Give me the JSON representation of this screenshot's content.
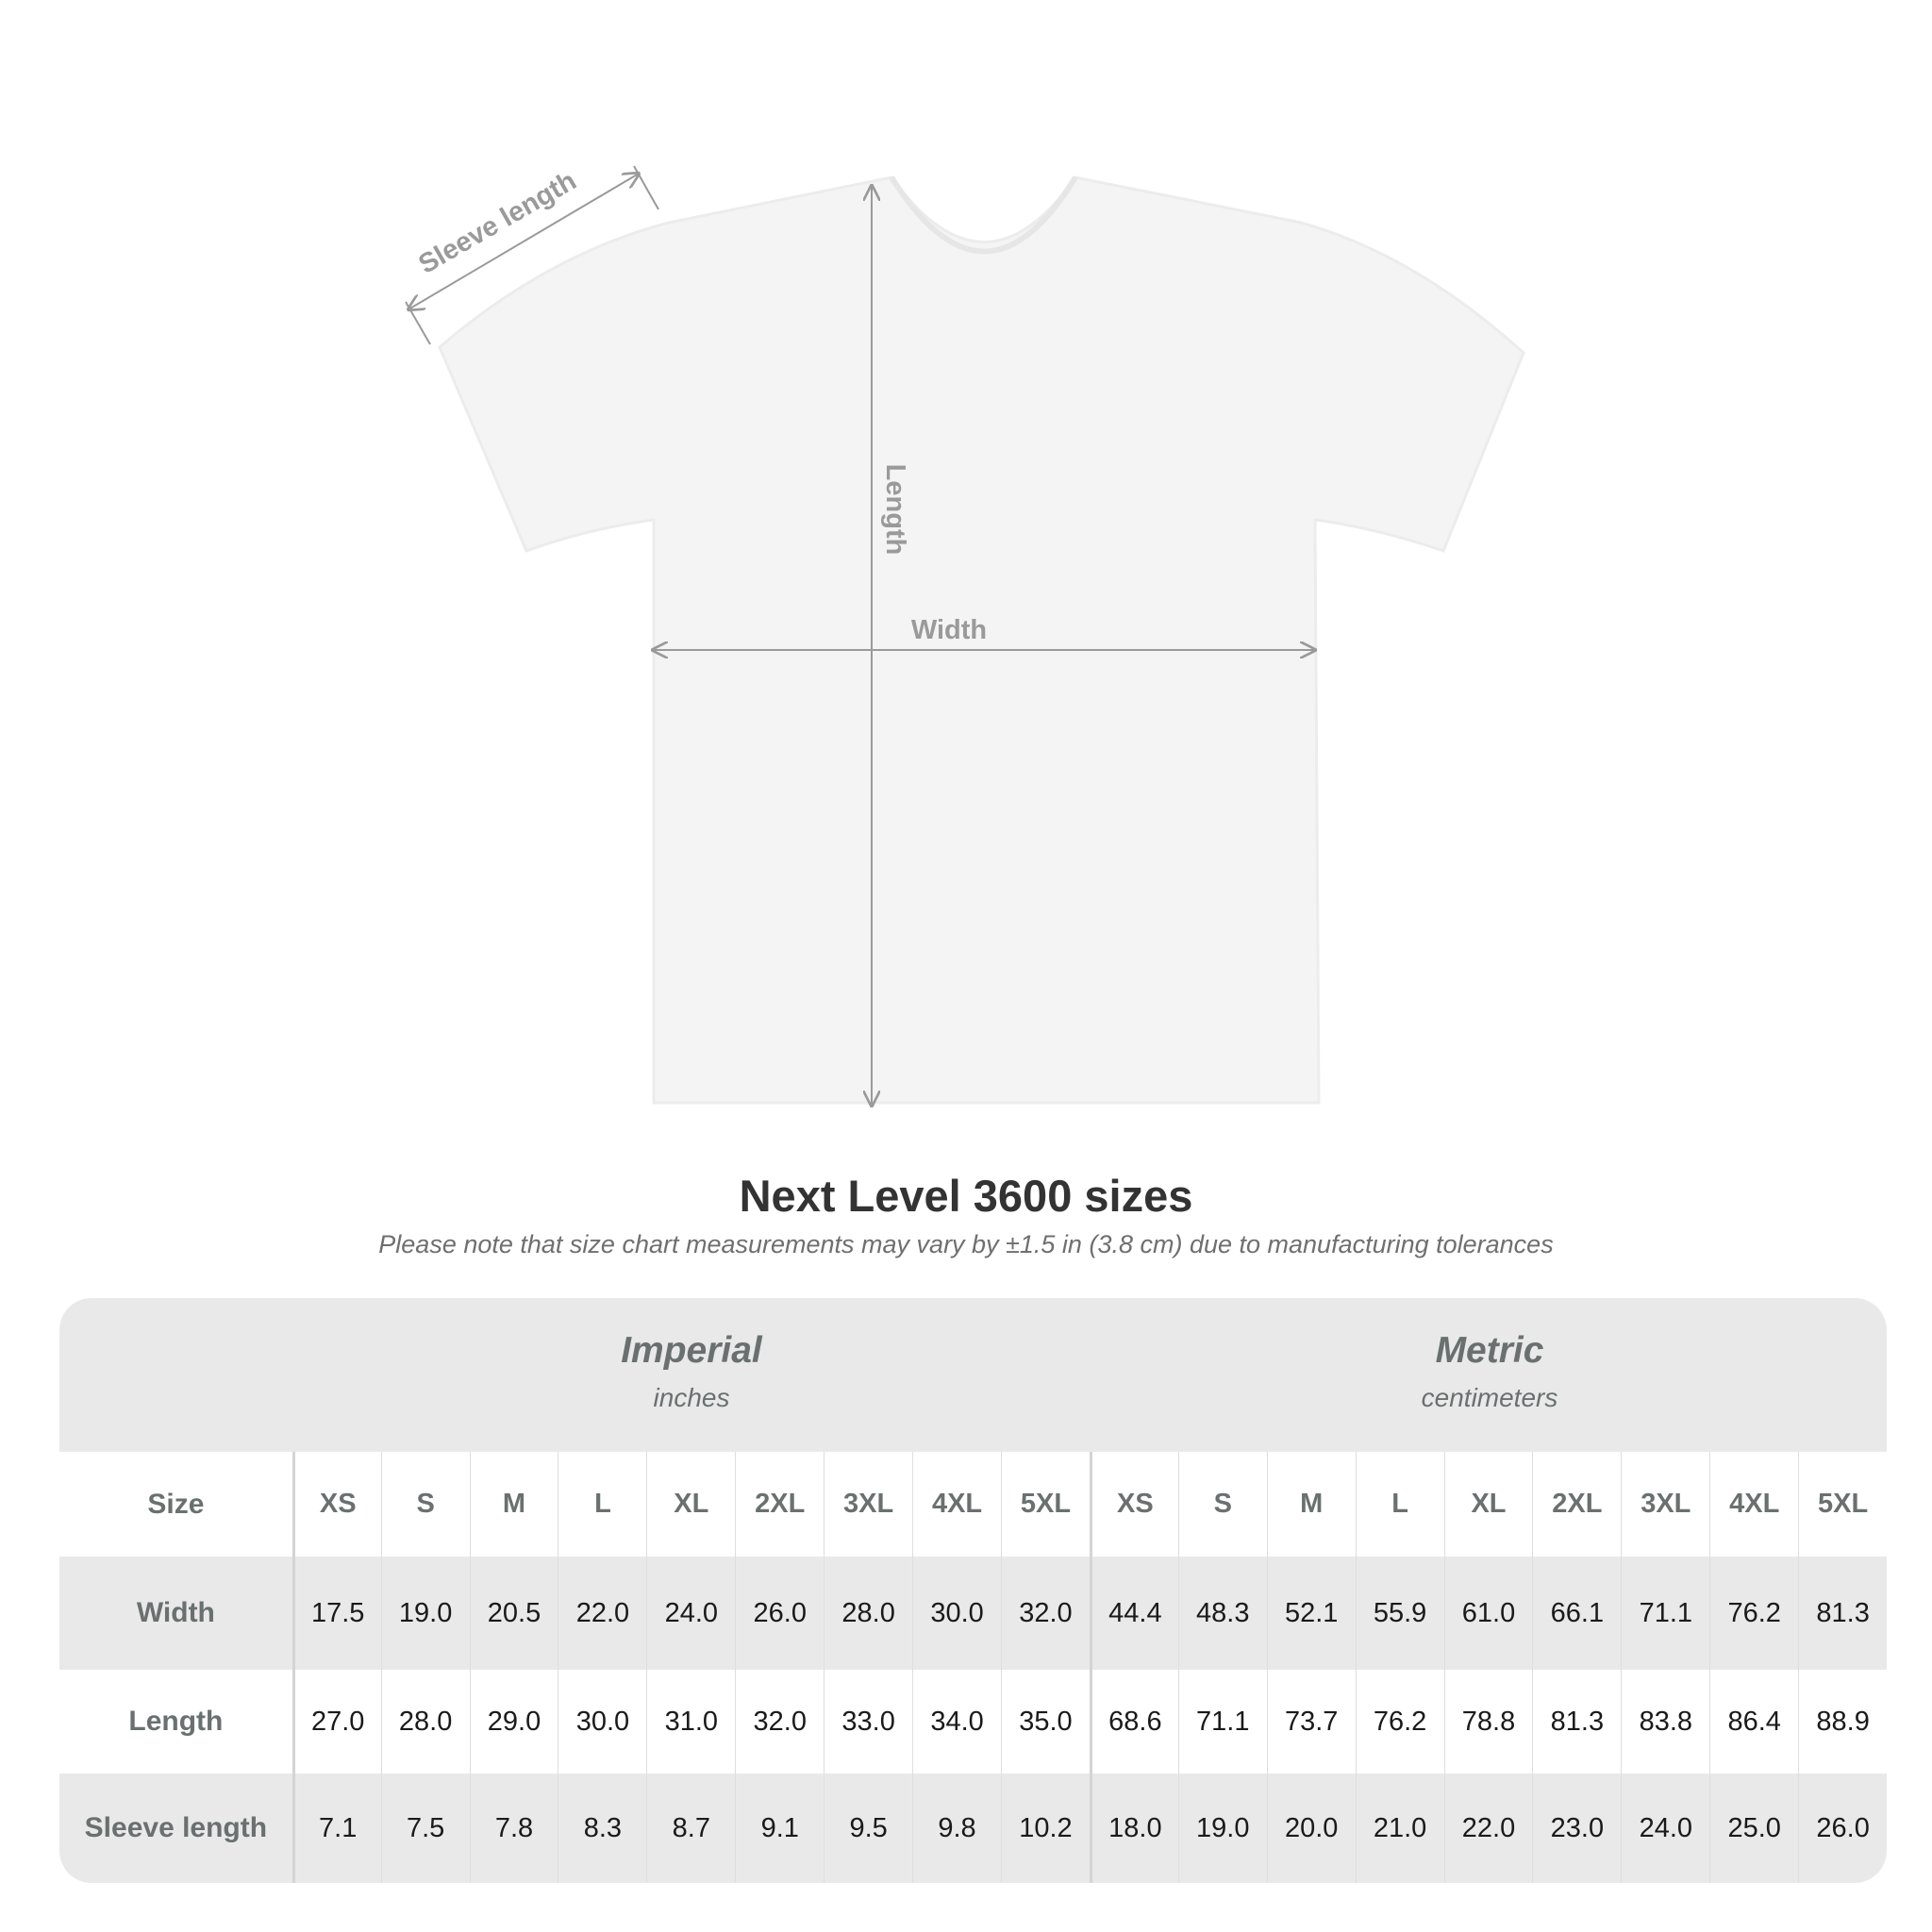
{
  "diagram": {
    "labels": {
      "sleeve": "Sleeve length",
      "length": "Length",
      "width": "Width"
    },
    "colors": {
      "shirt": "#f5f5f5",
      "arrow": "#9a9a9a"
    }
  },
  "title": "Next Level 3600 sizes",
  "subtitle": "Please note that size chart measurements may vary by ±1.5 in (3.8 cm) due to manufacturing tolerances",
  "table": {
    "imperial": {
      "name": "Imperial",
      "unit": "inches"
    },
    "metric": {
      "name": "Metric",
      "unit": "centimeters"
    },
    "size_label": "Size",
    "sizes": [
      "XS",
      "S",
      "M",
      "L",
      "XL",
      "2XL",
      "3XL",
      "4XL",
      "5XL"
    ],
    "rows": [
      {
        "label": "Width",
        "imperial": [
          "17.5",
          "19.0",
          "20.5",
          "22.0",
          "24.0",
          "26.0",
          "28.0",
          "30.0",
          "32.0"
        ],
        "metric": [
          "44.4",
          "48.3",
          "52.1",
          "55.9",
          "61.0",
          "66.1",
          "71.1",
          "76.2",
          "81.3"
        ]
      },
      {
        "label": "Length",
        "imperial": [
          "27.0",
          "28.0",
          "29.0",
          "30.0",
          "31.0",
          "32.0",
          "33.0",
          "34.0",
          "35.0"
        ],
        "metric": [
          "68.6",
          "71.1",
          "73.7",
          "76.2",
          "78.8",
          "81.3",
          "83.8",
          "86.4",
          "88.9"
        ]
      },
      {
        "label": "Sleeve length",
        "imperial": [
          "7.1",
          "7.5",
          "7.8",
          "8.3",
          "8.7",
          "9.1",
          "9.5",
          "9.8",
          "10.2"
        ],
        "metric": [
          "18.0",
          "19.0",
          "20.0",
          "21.0",
          "22.0",
          "23.0",
          "24.0",
          "25.0",
          "26.0"
        ]
      }
    ]
  }
}
